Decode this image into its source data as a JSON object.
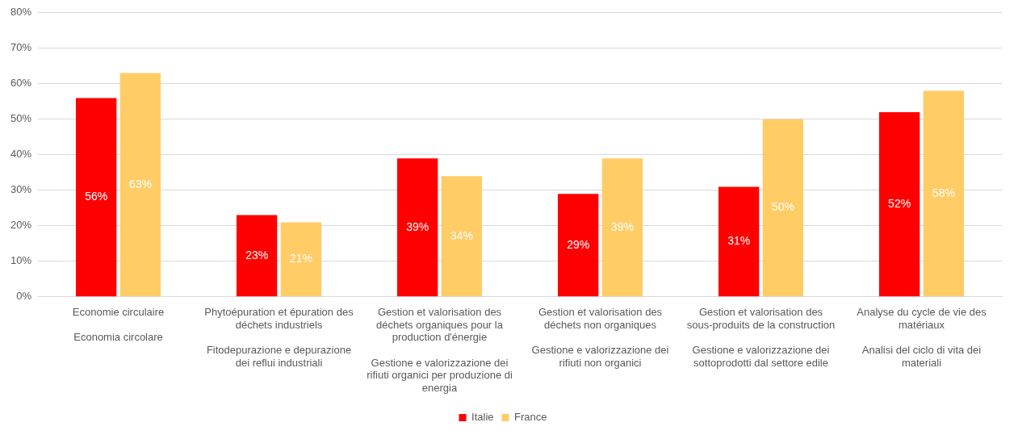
{
  "chart_data": {
    "type": "bar",
    "categories": [
      "Economie circulaire\n\nEconomia circolare",
      "Phytoépuration et épuration des déchets industriels\n\nFitodepurazione e depurazione dei reflui industriali",
      "Gestion et valorisation des déchets organiques pour la production d'énergie\n\nGestione e valorizzazione dei rifiuti organici per produzione di energia",
      "Gestion et valorisation des déchets non organiques\n\nGestione e valorizzazione dei rifiuti non organici",
      "Gestion et valorisation des sous-produits de la construction\n\nGestione e valorizzazione dei sottoprodotti dal settore edile",
      "Analyse du cycle de vie des matériaux\n\nAnalisi del ciclo di vita dei materiali"
    ],
    "series": [
      {
        "name": "Italie",
        "color": "#ff0000",
        "values": [
          56,
          23,
          39,
          29,
          31,
          52
        ],
        "value_labels": [
          "56%",
          "23%",
          "39%",
          "29%",
          "31%",
          "52%"
        ]
      },
      {
        "name": "France",
        "color": "#ffcc66",
        "values": [
          63,
          21,
          34,
          39,
          50,
          58
        ],
        "value_labels": [
          "63%",
          "21%",
          "34%",
          "39%",
          "50%",
          "58%"
        ]
      }
    ],
    "ylim": [
      0,
      80
    ],
    "yticks": [
      {
        "value": 0,
        "label": "0%"
      },
      {
        "value": 10,
        "label": "10%"
      },
      {
        "value": 20,
        "label": "20%"
      },
      {
        "value": 30,
        "label": "30%"
      },
      {
        "value": 40,
        "label": "40%"
      },
      {
        "value": 50,
        "label": "50%"
      },
      {
        "value": 60,
        "label": "60%"
      },
      {
        "value": 70,
        "label": "70%"
      },
      {
        "value": 80,
        "label": "80%"
      }
    ],
    "grid": "y",
    "legend": "bottom"
  }
}
